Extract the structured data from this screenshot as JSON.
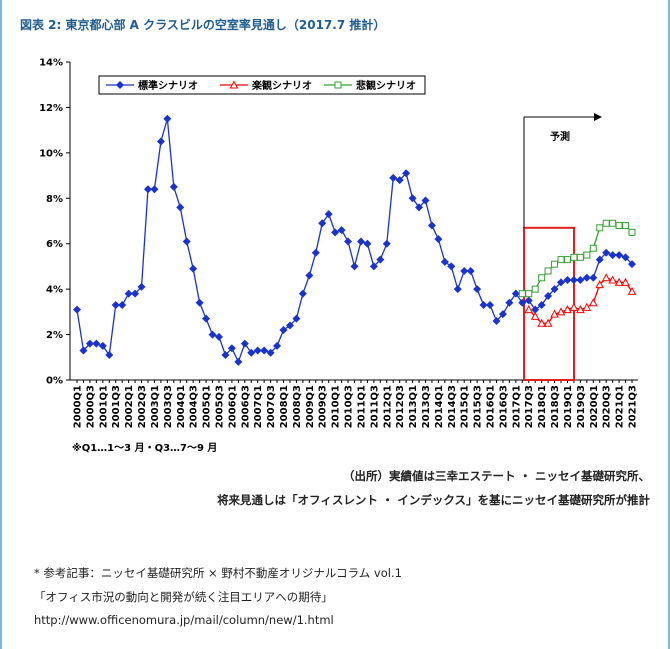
{
  "header": {
    "title": "図表 2: 東京都心部 A クラスビルの空室率見通し（2017.7 推計）"
  },
  "chart_data": {
    "type": "line",
    "categories": [
      "2000Q1",
      null,
      "2000Q3",
      null,
      "2001Q1",
      null,
      "2001Q3",
      null,
      "2002Q1",
      null,
      "2002Q3",
      null,
      "2003Q1",
      null,
      "2003Q3",
      null,
      "2004Q1",
      null,
      "2004Q3",
      null,
      "2005Q1",
      null,
      "2005Q3",
      null,
      "2006Q1",
      null,
      "2006Q3",
      null,
      "2007Q1",
      null,
      "2007Q3",
      null,
      "2008Q1",
      null,
      "2008Q3",
      null,
      "2009Q1",
      null,
      "2009Q3",
      null,
      "2010Q1",
      null,
      "2010Q3",
      null,
      "2011Q1",
      null,
      "2011Q3",
      null,
      "2012Q1",
      null,
      "2012Q3",
      null,
      "2013Q1",
      null,
      "2013Q3",
      null,
      "2014Q1",
      null,
      "2014Q3",
      null,
      "2015Q1",
      null,
      "2015Q3",
      null,
      "2016Q1",
      null,
      "2016Q3",
      null,
      "2017Q1",
      null,
      "2017Q3",
      null,
      "2018Q1",
      null,
      "2018Q3",
      null,
      "2019Q1",
      null,
      "2019Q3",
      null,
      "2020Q1",
      null,
      "2020Q3",
      null,
      "2021Q1",
      null,
      "2021Q3"
    ],
    "series": [
      {
        "name": "標準シナリオ",
        "color": "#1a33cc",
        "marker": "diamond",
        "values": [
          3.1,
          1.3,
          1.6,
          1.6,
          1.5,
          1.1,
          3.3,
          3.3,
          3.8,
          3.8,
          4.1,
          8.4,
          8.4,
          10.5,
          11.5,
          8.5,
          7.6,
          6.1,
          4.9,
          3.4,
          2.7,
          2.0,
          1.9,
          1.1,
          1.4,
          0.8,
          1.6,
          1.2,
          1.3,
          1.3,
          1.2,
          1.5,
          2.2,
          2.4,
          2.7,
          3.8,
          4.6,
          5.6,
          6.9,
          7.3,
          6.5,
          6.6,
          6.1,
          5.0,
          6.1,
          6.0,
          5.0,
          5.3,
          6.0,
          8.9,
          8.8,
          9.1,
          8.0,
          7.6,
          7.9,
          6.8,
          6.2,
          5.2,
          5.0,
          4.0,
          4.8,
          4.8,
          4.0,
          3.3,
          3.3,
          2.6,
          2.9,
          3.4,
          3.8,
          3.4,
          3.5,
          3.1,
          3.3,
          3.7,
          4.0,
          4.3,
          4.4,
          4.4,
          4.4,
          4.5,
          4.5,
          5.3,
          5.6,
          5.5,
          5.5,
          5.4,
          5.1
        ]
      },
      {
        "name": "楽観シナリオ",
        "color": "#ff0000",
        "marker": "triangle",
        "values": [
          null,
          null,
          null,
          null,
          null,
          null,
          null,
          null,
          null,
          null,
          null,
          null,
          null,
          null,
          null,
          null,
          null,
          null,
          null,
          null,
          null,
          null,
          null,
          null,
          null,
          null,
          null,
          null,
          null,
          null,
          null,
          null,
          null,
          null,
          null,
          null,
          null,
          null,
          null,
          null,
          null,
          null,
          null,
          null,
          null,
          null,
          null,
          null,
          null,
          null,
          null,
          null,
          null,
          null,
          null,
          null,
          null,
          null,
          null,
          null,
          null,
          null,
          null,
          null,
          null,
          null,
          null,
          null,
          null,
          null,
          3.1,
          2.8,
          2.5,
          2.5,
          2.9,
          3.0,
          3.1,
          3.2,
          3.1,
          3.2,
          3.4,
          4.2,
          4.5,
          4.4,
          4.3,
          4.3,
          3.9
        ]
      },
      {
        "name": "悲観シナリオ",
        "color": "#33a033",
        "marker": "square",
        "values": [
          null,
          null,
          null,
          null,
          null,
          null,
          null,
          null,
          null,
          null,
          null,
          null,
          null,
          null,
          null,
          null,
          null,
          null,
          null,
          null,
          null,
          null,
          null,
          null,
          null,
          null,
          null,
          null,
          null,
          null,
          null,
          null,
          null,
          null,
          null,
          null,
          null,
          null,
          null,
          null,
          null,
          null,
          null,
          null,
          null,
          null,
          null,
          null,
          null,
          null,
          null,
          null,
          null,
          null,
          null,
          null,
          null,
          null,
          null,
          null,
          null,
          null,
          null,
          null,
          null,
          null,
          null,
          null,
          null,
          3.8,
          3.8,
          4.0,
          4.5,
          4.8,
          5.1,
          5.3,
          5.3,
          5.4,
          5.4,
          5.5,
          5.8,
          6.7,
          6.9,
          6.9,
          6.8,
          6.8,
          6.5
        ]
      }
    ],
    "ylim": [
      0,
      14
    ],
    "yticks": [
      {
        "value": 0,
        "label": "0%"
      },
      {
        "value": 2,
        "label": "2%"
      },
      {
        "value": 4,
        "label": "4%"
      },
      {
        "value": 6,
        "label": "6%"
      },
      {
        "value": 8,
        "label": "8%"
      },
      {
        "value": 10,
        "label": "10%"
      },
      {
        "value": 12,
        "label": "12%"
      },
      {
        "value": 14,
        "label": "14%"
      }
    ],
    "grid": false,
    "legend": "top-left",
    "annotation": "予測",
    "note": "※Q1…1～3 月・Q3…7～9 月"
  },
  "source": [
    "（出所）実績値は三幸エステート ・ ニッセイ基礎研究所、",
    "将来見通しは「オフィスレント ・ インデックス」を基にニッセイ基礎研究所が推計"
  ],
  "reference": [
    "* 参考記事：ニッセイ基礎研究所 × 野村不動産オリジナルコラム vol.1",
    "「オフィス市況の動向と開発が続く注目エリアへの期待」",
    "http://www.officenomura.jp/mail/column/new/1.html"
  ]
}
